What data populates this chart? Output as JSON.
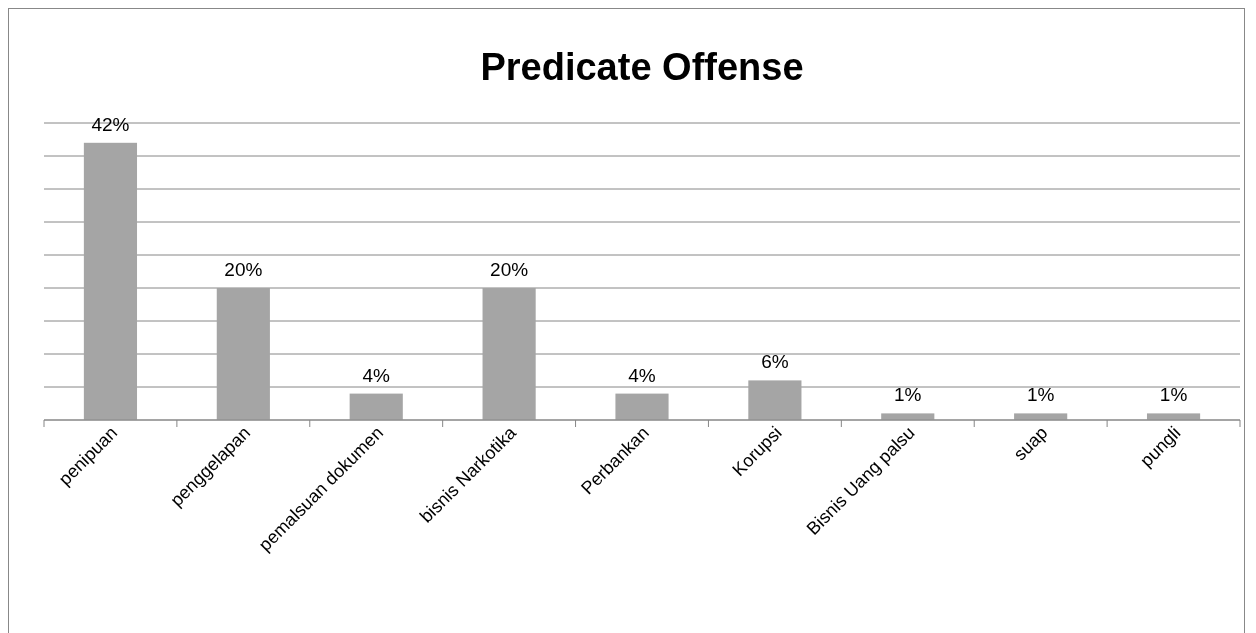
{
  "chart_data": {
    "type": "bar",
    "title": "Predicate Offense",
    "categories": [
      "penipuan",
      "penggelapan",
      "pemalsuan dokumen",
      "bisnis Narkotika",
      "Perbankan",
      "Korupsi",
      "Bisnis Uang  palsu",
      "suap",
      "pungli"
    ],
    "values": [
      42,
      20,
      4,
      20,
      4,
      6,
      1,
      1,
      1
    ],
    "color": "#a5a5a5",
    "ylim": [
      0,
      45
    ],
    "yticks": [
      {
        "value": 0,
        "label": null
      },
      {
        "value": 5,
        "label": null
      },
      {
        "value": 10,
        "label": null
      },
      {
        "value": 15,
        "label": null
      },
      {
        "value": 20,
        "label": null
      },
      {
        "value": 25,
        "label": null
      },
      {
        "value": 30,
        "label": null
      },
      {
        "value": 35,
        "label": null
      },
      {
        "value": 40,
        "label": null
      },
      {
        "value": 45,
        "label": null
      }
    ],
    "tick_labels": "x",
    "grid": "y",
    "data_labels": true,
    "value_labels": [
      "42%",
      "20%",
      "4%",
      "20%",
      "4%",
      "6%",
      "1%",
      "1%",
      "1%"
    ]
  }
}
